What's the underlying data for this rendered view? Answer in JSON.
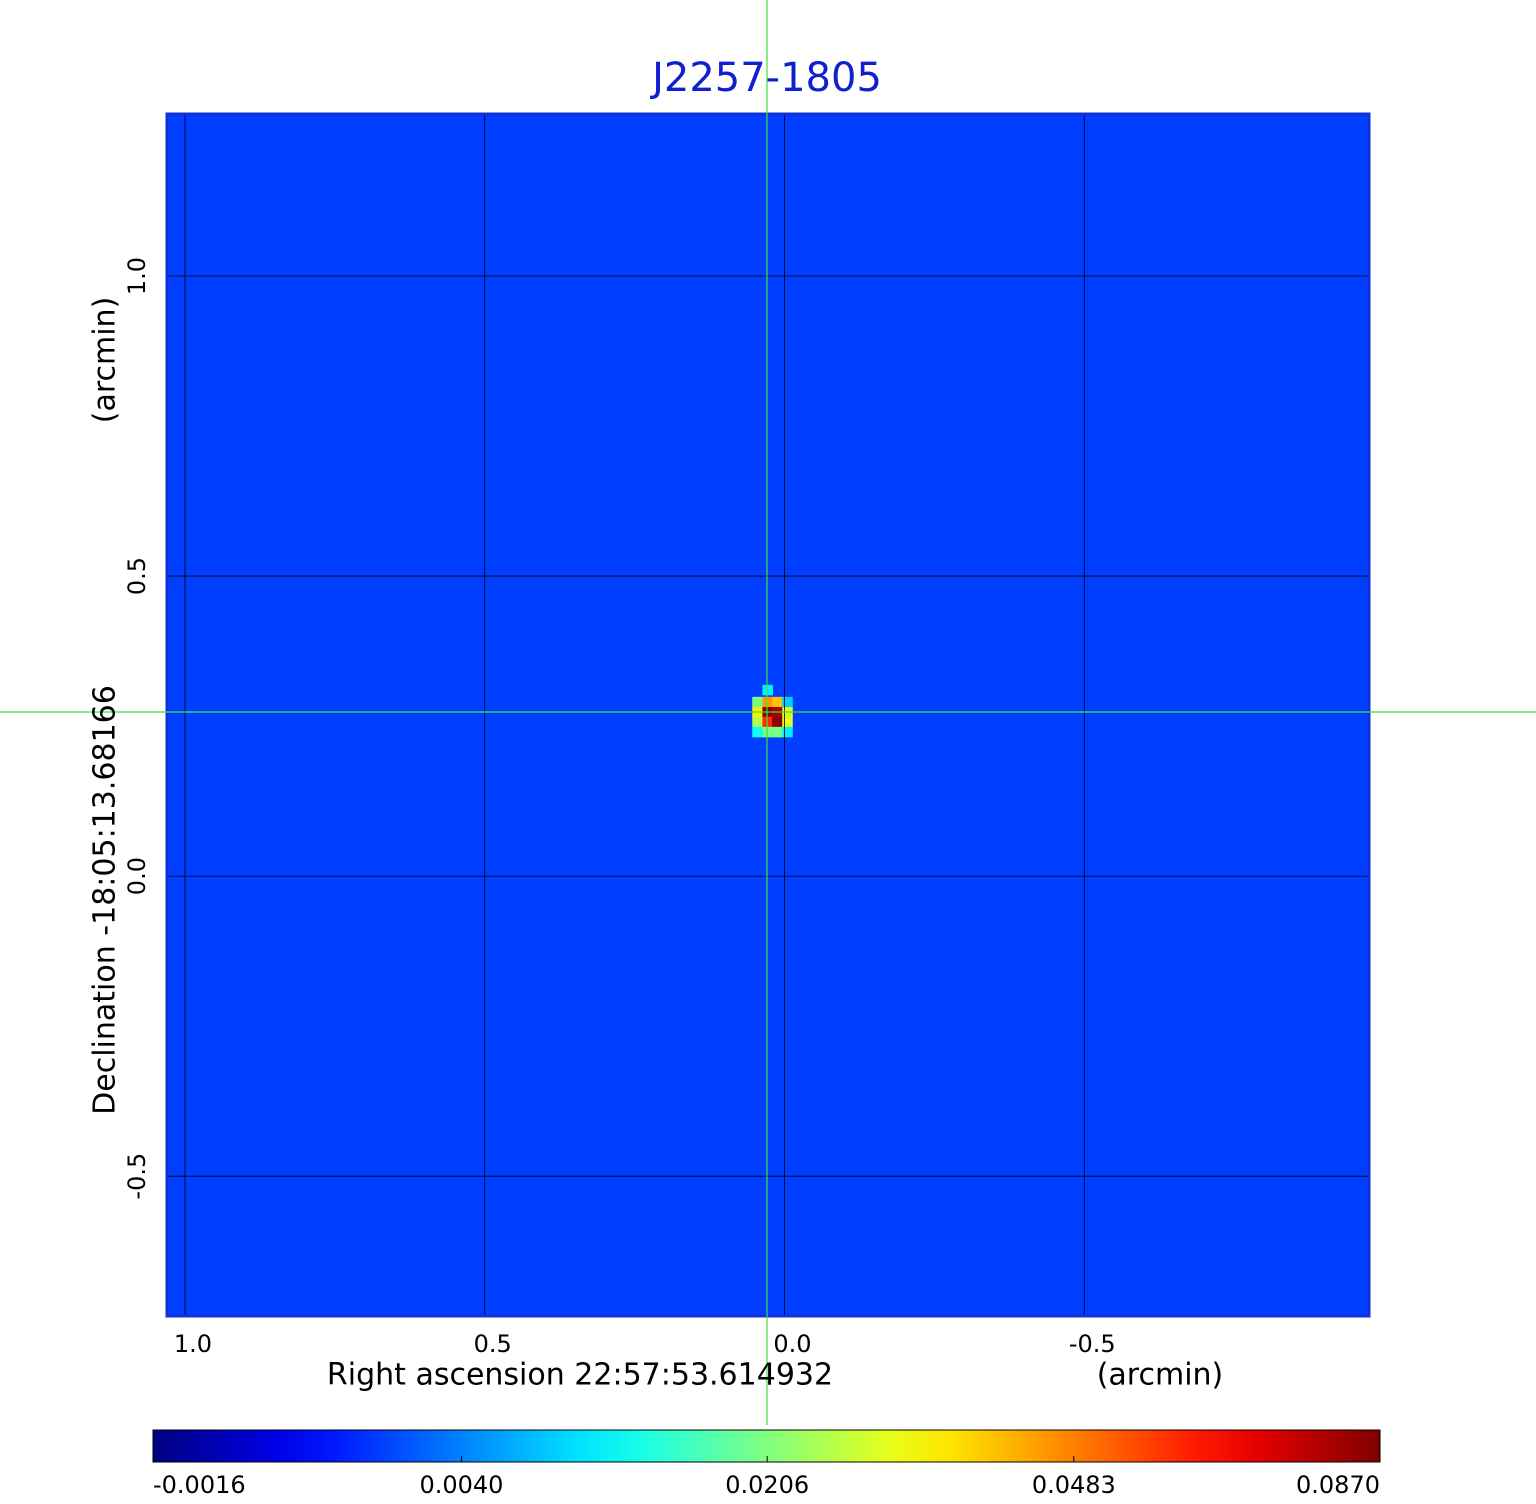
{
  "chart_data": {
    "type": "image",
    "title": "J2257-1805",
    "x_label": "Right ascension  22:57:53.614932",
    "x_unit": "(arcmin)",
    "y_label": "Declination  -18:05:13.68166",
    "y_unit": "(arcmin)",
    "xlim": [
      1.03,
      -0.975
    ],
    "ylim": [
      -0.733,
      1.27
    ],
    "xticks": [
      {
        "value": 1,
        "label": "1.0"
      },
      0.5,
      {
        "value": 0,
        "label": "0.0"
      },
      -0.5
    ],
    "yticks": [
      {
        "value": 1,
        "label": "1.0"
      },
      0.5,
      {
        "value": 0,
        "label": "0.0"
      },
      -0.5
    ],
    "grid": true,
    "colormap": "jet",
    "color_scale": "sqrt",
    "clim": [
      -0.0016,
      0.087
    ],
    "colorbar_ticks": [
      -0.0016,
      {
        "value": 0.004,
        "label": "0.0040"
      },
      0.0206,
      0.0483,
      {
        "value": 0.087,
        "label": "0.0870"
      }
    ],
    "background": 0.0015,
    "pixels": {
      "x": [
        0.045,
        0.028,
        0.012,
        -0.005,
        0.045,
        0.028,
        0.012,
        -0.005,
        0.045,
        0.028,
        0.012,
        -0.005,
        0.045,
        0.028,
        0.012,
        -0.005,
        0.028
      ],
      "y": [
        0.29,
        0.29,
        0.29,
        0.29,
        0.273,
        0.273,
        0.273,
        0.273,
        0.257,
        0.257,
        0.257,
        0.257,
        0.24,
        0.24,
        0.24,
        0.24,
        0.31
      ],
      "values": [
        0.02,
        0.045,
        0.04,
        0.008,
        0.035,
        0.087,
        0.08,
        0.03,
        0.025,
        0.06,
        0.085,
        0.03,
        0.012,
        0.02,
        0.02,
        0.01,
        0.01
      ]
    }
  }
}
